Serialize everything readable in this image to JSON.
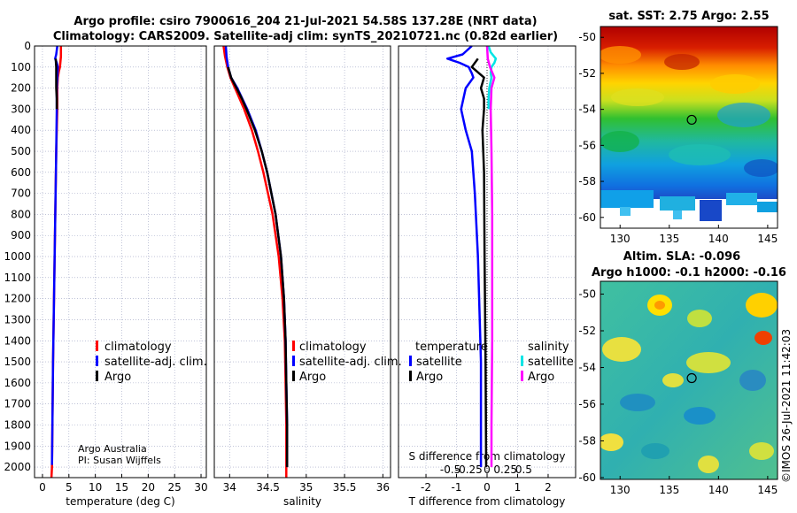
{
  "header": {
    "line1": "Argo profile: csiro 7900616_204 21-Jul-2021 54.58S 137.28E (NRT data)",
    "line2": "Climatology: CARS2009. Satellite-adj clim: synTS_20210721.nc (0.82d earlier)"
  },
  "colors": {
    "climatology": "#ff0000",
    "satellite": "#0000ff",
    "argo": "#000000",
    "sal_satellite": "#00e5e5",
    "sal_argo": "#ff00ff",
    "grid": "#9aa0c0"
  },
  "credits": {
    "line1": "Argo Australia",
    "line2": "PI: Susan Wijffels"
  },
  "timestamp": "©IMOS 26-Jul-2021 11:42:03",
  "legend_main": {
    "climatology": "climatology",
    "satellite": "satellite-adj. clim.",
    "argo": "Argo"
  },
  "legend_diff": {
    "t_title": "temperature",
    "s_title": "salinity",
    "satellite": "satellite",
    "argo": "Argo"
  },
  "maps": {
    "sst_title": "sat. SST: 2.75 Argo: 2.55",
    "sla_title1": "Altim. SLA: -0.096",
    "sla_title2": "Argo h1000: -0.1 h2000: -0.16",
    "lat_ticks": [
      "-50",
      "-52",
      "-54",
      "-56",
      "-58",
      "-60"
    ],
    "lon_ticks": [
      "130",
      "135",
      "140",
      "145"
    ],
    "float_lon": 137.28,
    "float_lat": -54.58
  },
  "chart_data": [
    {
      "type": "line",
      "name": "temperature-profile",
      "xlabel": "temperature (deg C)",
      "ylabel": "",
      "xlim": [
        -1.5,
        31
      ],
      "ylim": [
        2050,
        0
      ],
      "xticks": [
        "0",
        "5",
        "10",
        "15",
        "20",
        "25",
        "30"
      ],
      "xtick_values": [
        0,
        5,
        10,
        15,
        20,
        25,
        30
      ],
      "yticks": [
        "0",
        "100",
        "200",
        "300",
        "400",
        "500",
        "600",
        "700",
        "800",
        "900",
        "1000",
        "1100",
        "1200",
        "1300",
        "1400",
        "1500",
        "1600",
        "1700",
        "1800",
        "1900",
        "2000"
      ],
      "ytick_values": [
        0,
        100,
        200,
        300,
        400,
        500,
        600,
        700,
        800,
        900,
        1000,
        1100,
        1200,
        1300,
        1400,
        1500,
        1600,
        1700,
        1800,
        1900,
        2000
      ],
      "series": [
        {
          "name": "climatology",
          "depth": [
            0,
            50,
            100,
            120,
            150,
            200,
            300,
            500,
            1000,
            1500,
            2000,
            2050
          ],
          "values": [
            3.5,
            3.5,
            3.3,
            3.1,
            2.9,
            2.8,
            2.8,
            2.6,
            2.3,
            2.0,
            1.8,
            1.7
          ]
        },
        {
          "name": "satellite-adj. clim.",
          "depth": [
            0,
            40,
            60,
            80,
            100,
            150,
            200,
            300,
            500,
            1000,
            1500,
            1990
          ],
          "values": [
            2.8,
            2.6,
            2.4,
            2.7,
            2.9,
            2.8,
            2.7,
            2.7,
            2.6,
            2.3,
            2.0,
            1.8
          ]
        },
        {
          "name": "Argo",
          "depth": [
            60,
            100,
            150,
            200,
            250,
            300
          ],
          "values": [
            2.5,
            2.6,
            2.6,
            2.6,
            2.7,
            2.7
          ]
        }
      ]
    },
    {
      "type": "line",
      "name": "salinity-profile",
      "xlabel": "salinity",
      "ylabel": "",
      "xlim": [
        33.8,
        36.1
      ],
      "ylim": [
        2050,
        0
      ],
      "xticks": [
        "34",
        "34.5",
        "35",
        "35.5",
        "36"
      ],
      "xtick_values": [
        34,
        34.5,
        35,
        35.5,
        36
      ],
      "series": [
        {
          "name": "climatology",
          "depth": [
            0,
            50,
            100,
            150,
            200,
            300,
            400,
            500,
            600,
            800,
            1000,
            1200,
            1400,
            1600,
            1800,
            2000,
            2050
          ],
          "values": [
            33.92,
            33.94,
            33.97,
            34.01,
            34.07,
            34.19,
            34.29,
            34.37,
            34.44,
            34.56,
            34.64,
            34.69,
            34.72,
            34.73,
            34.74,
            34.74,
            34.74
          ]
        },
        {
          "name": "satellite-adj. clim.",
          "depth": [
            0,
            50,
            100,
            150,
            200,
            300,
            400,
            500,
            600,
            800,
            1000,
            1200,
            1400,
            1600,
            1800,
            2000
          ],
          "values": [
            33.95,
            33.96,
            33.98,
            34.02,
            34.1,
            34.23,
            34.34,
            34.42,
            34.49,
            34.6,
            34.67,
            34.71,
            34.73,
            34.74,
            34.75,
            34.75
          ]
        },
        {
          "name": "Argo",
          "depth": [
            100,
            150,
            200,
            250,
            300,
            400,
            500,
            600,
            800,
            1000,
            1200,
            1400,
            1600,
            1800,
            2000
          ],
          "values": [
            33.98,
            34.02,
            34.09,
            34.16,
            34.22,
            34.33,
            34.42,
            34.49,
            34.6,
            34.67,
            34.71,
            34.73,
            34.74,
            34.75,
            34.75
          ]
        }
      ]
    },
    {
      "type": "line",
      "name": "difference-profile",
      "xlabel": "T difference from climatology",
      "x2label": "S difference from climatology",
      "ylabel": "",
      "xlim": [
        -2.9,
        2.9
      ],
      "ylim": [
        2050,
        0
      ],
      "xticks": [
        "-2",
        "-1",
        "0",
        "1",
        "2"
      ],
      "xtick_values": [
        -2,
        -1,
        0,
        1,
        2
      ],
      "x2ticks": [
        "-0.5",
        "-0.25",
        "0",
        "0.25",
        "0.5"
      ],
      "x2tick_values": [
        -0.5,
        -0.25,
        0,
        0.25,
        0.5
      ],
      "series": [
        {
          "name": "T satellite",
          "depth": [
            0,
            40,
            60,
            80,
            100,
            130,
            150,
            200,
            300,
            400,
            500,
            700,
            1000,
            1500,
            2000
          ],
          "values": [
            -0.5,
            -0.8,
            -1.3,
            -0.9,
            -0.6,
            -0.5,
            -0.45,
            -0.7,
            -0.85,
            -0.7,
            -0.5,
            -0.4,
            -0.3,
            -0.2,
            -0.2
          ]
        },
        {
          "name": "T Argo",
          "depth": [
            60,
            100,
            150,
            200,
            250,
            300,
            400,
            600,
            1000,
            1500,
            2000
          ],
          "values": [
            -0.3,
            -0.5,
            -0.1,
            -0.2,
            -0.1,
            -0.1,
            -0.15,
            -0.1,
            -0.08,
            -0.05,
            -0.03
          ]
        },
        {
          "name": "S satellite",
          "depth": [
            0,
            30,
            60,
            80,
            100,
            130,
            150,
            200,
            250,
            300
          ],
          "values": [
            0.02,
            0.05,
            0.12,
            0.1,
            0.06,
            0.05,
            0.06,
            0.03,
            0.02,
            0.02
          ]
        },
        {
          "name": "S Argo",
          "depth": [
            0,
            60,
            100,
            150,
            200,
            300,
            500,
            800,
            1000,
            1400,
            1800,
            2000
          ],
          "values": [
            0.0,
            0.01,
            0.04,
            0.1,
            0.06,
            0.05,
            0.06,
            0.07,
            0.07,
            0.07,
            0.06,
            0.06
          ]
        }
      ]
    }
  ]
}
